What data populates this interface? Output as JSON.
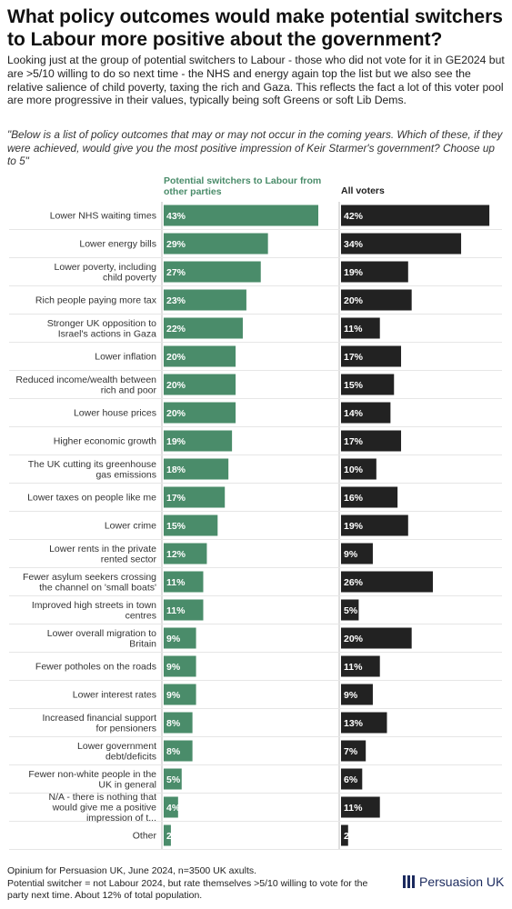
{
  "title": "What policy outcomes would make potential switchers to Labour more positive about the government?",
  "description": "Looking just at the group of potential switchers to Labour - those who did not vote for it in GE2024 but are >5/10 willing to do so next time - the NHS and energy again top the list but we also see the relative salience of child poverty, taxing the rich and Gaza. This reflects the fact a lot of this voter pool are more progressive in their values, typically being soft Greens or soft Lib Dems.",
  "question": "\"Below is a list of policy outcomes that may or may not occur in the coming years. Which of these, if they were achieved, would give you the most positive impression of Keir Starmer's government? Choose up to 5\"",
  "footer": {
    "line1": "Opinium for Persuasion UK, June 2024, n=3500 UK axults.",
    "line2": "Potential switcher = not Labour 2024, but rate themselves >5/10 willing to vote for the party next time. About 12% of total population."
  },
  "logo": {
    "text": "Persuasion UK"
  },
  "chart_data": {
    "type": "bar",
    "orientation": "horizontal",
    "categories": [
      "Lower NHS waiting times",
      "Lower energy bills",
      "Lower poverty, including child poverty",
      "Rich people paying more tax",
      "Stronger UK opposition to Israel's actions in Gaza",
      "Lower inflation",
      "Reduced income/wealth between rich and poor",
      "Lower house prices",
      "Higher economic growth",
      "The UK cutting its greenhouse gas emissions",
      "Lower taxes on people like me",
      "Lower crime",
      "Lower rents in the private rented sector",
      "Fewer asylum seekers crossing the channel on 'small boats'",
      "Improved high streets in town centres",
      "Lower overall migration to Britain",
      "Fewer potholes on the roads",
      "Lower interest rates",
      "Increased financial support for pensioners",
      "Lower government debt/deficits",
      "Fewer non-white people in the UK in general",
      "N/A - there is nothing that would give me a positive impression of t...",
      "Other"
    ],
    "series": [
      {
        "name": "Potential switchers to Labour from other parties",
        "color": "#4a8c6a",
        "values": [
          43,
          29,
          27,
          23,
          22,
          20,
          20,
          20,
          19,
          18,
          17,
          15,
          12,
          11,
          11,
          9,
          9,
          9,
          8,
          8,
          5,
          4,
          2
        ]
      },
      {
        "name": "All voters",
        "color": "#222222",
        "values": [
          42,
          34,
          19,
          20,
          11,
          17,
          15,
          14,
          17,
          10,
          16,
          19,
          9,
          26,
          5,
          20,
          11,
          9,
          13,
          7,
          6,
          11,
          2
        ]
      }
    ],
    "value_suffix": "%",
    "xlim": [
      0,
      43
    ],
    "grid": false
  }
}
